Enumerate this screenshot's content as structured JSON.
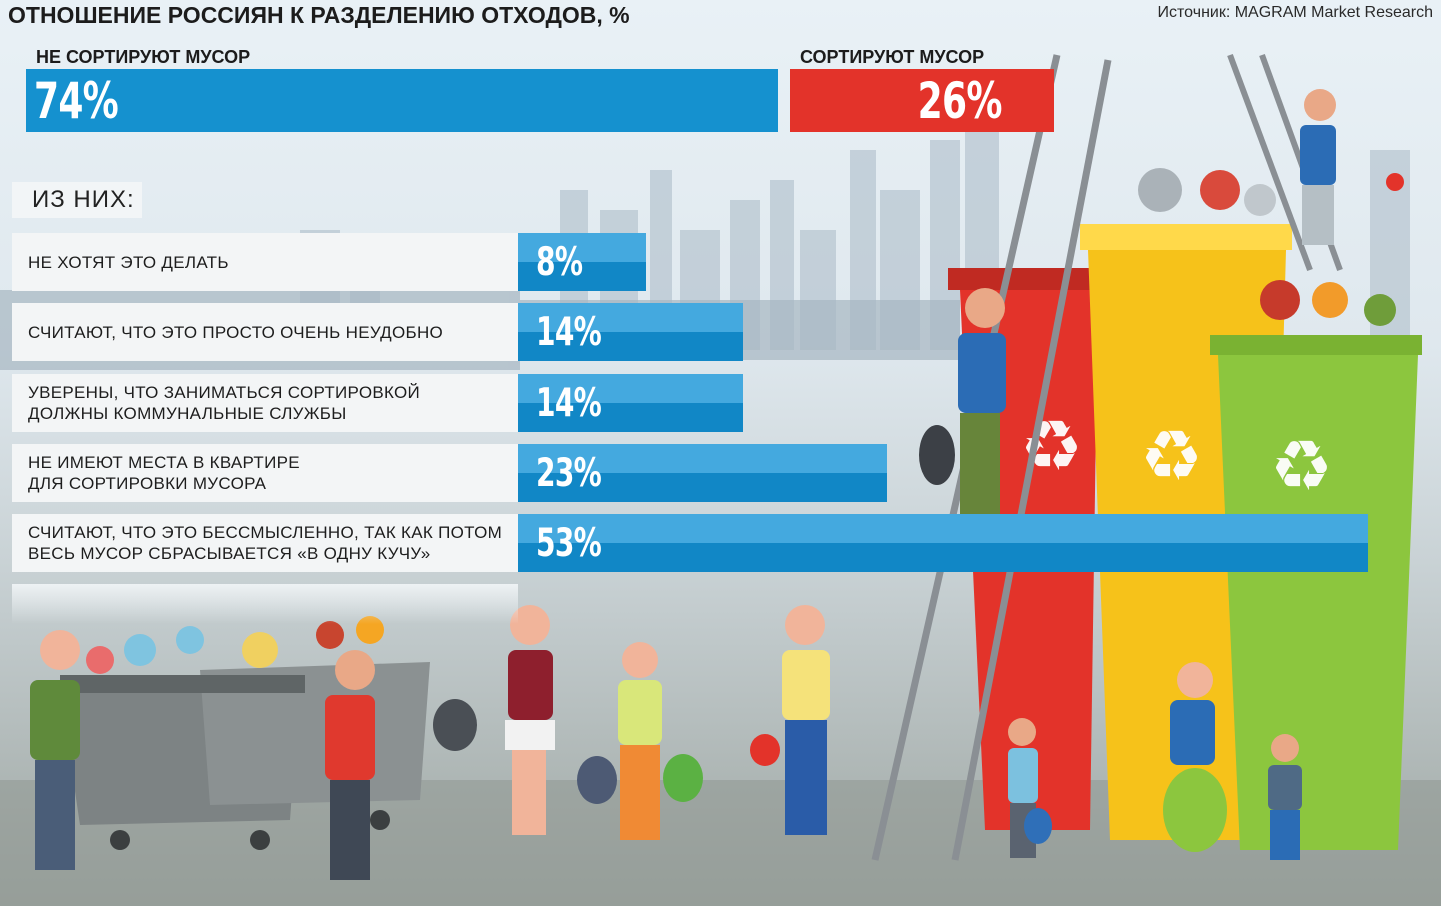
{
  "title": "ОТНОШЕНИЕ РОССИЯН К РАЗДЕЛЕНИЮ ОТХОДОВ, %",
  "source": "Источник: MAGRAM Market Research",
  "summary": {
    "not_sort": {
      "label": "НЕ СОРТИРУЮТ МУСОР",
      "value_text": "74%",
      "color": "#1591cf"
    },
    "sort": {
      "label": "СОРТИРУЮТ МУСОР",
      "value_text": "26%",
      "color": "#e3332a"
    }
  },
  "subheading": "ИЗ НИХ:",
  "reasons": [
    {
      "label": "НЕ ХОТЯТ ЭТО ДЕЛАТЬ",
      "value_text": "8%"
    },
    {
      "label": "СЧИТАЮТ, ЧТО ЭТО ПРОСТО ОЧЕНЬ НЕУДОБНО",
      "value_text": "14%"
    },
    {
      "label": "УВЕРЕНЫ, ЧТО ЗАНИМАТЬСЯ СОРТИРОВКОЙ\nДОЛЖНЫ КОММУНАЛЬНЫЕ СЛУЖБЫ",
      "value_text": "14%"
    },
    {
      "label": "НЕ ИМЕЮТ МЕСТА В КВАРТИРЕ\nДЛЯ СОРТИРОВКИ МУСОРА",
      "value_text": "23%"
    },
    {
      "label": "СЧИТАЮТ, ЧТО ЭТО БЕССМЫСЛЕННО, ТАК КАК ПОТОМ\nВЕСЬ МУСОР СБРАСЫВАЕТСЯ «В ОДНУ КУЧУ»",
      "value_text": "53%"
    }
  ],
  "chart_data": [
    {
      "type": "bar",
      "categories": [
        "НЕ СОРТИРУЮТ МУСОР",
        "СОРТИРУЮТ МУСОР"
      ],
      "values": [
        74,
        26
      ],
      "title": "ОТНОШЕНИЕ РОССИЯН К РАЗДЕЛЕНИЮ ОТХОДОВ, %"
    },
    {
      "type": "bar",
      "title": "ИЗ НИХ:",
      "categories": [
        "НЕ ХОТЯТ ЭТО ДЕЛАТЬ",
        "СЧИТАЮТ, ЧТО ЭТО ПРОСТО ОЧЕНЬ НЕУДОБНО",
        "УВЕРЕНЫ, ЧТО ЗАНИМАТЬСЯ СОРТИРОВКОЙ ДОЛЖНЫ КОММУНАЛЬНЫЕ СЛУЖБЫ",
        "НЕ ИМЕЮТ МЕСТА В КВАРТИРЕ ДЛЯ СОРТИРОВКИ МУСОРА",
        "СЧИТАЮТ, ЧТО ЭТО БЕССМЫСЛЕННО, ТАК КАК ПОТОМ ВЕСЬ МУСОР СБРАСЫВАЕТСЯ «В ОДНУ КУЧУ»"
      ],
      "values": [
        8,
        14,
        14,
        23,
        53
      ]
    }
  ],
  "bin_colors": {
    "red": "#e3332a",
    "yellow": "#f6c21a",
    "green": "#8cc63e"
  }
}
